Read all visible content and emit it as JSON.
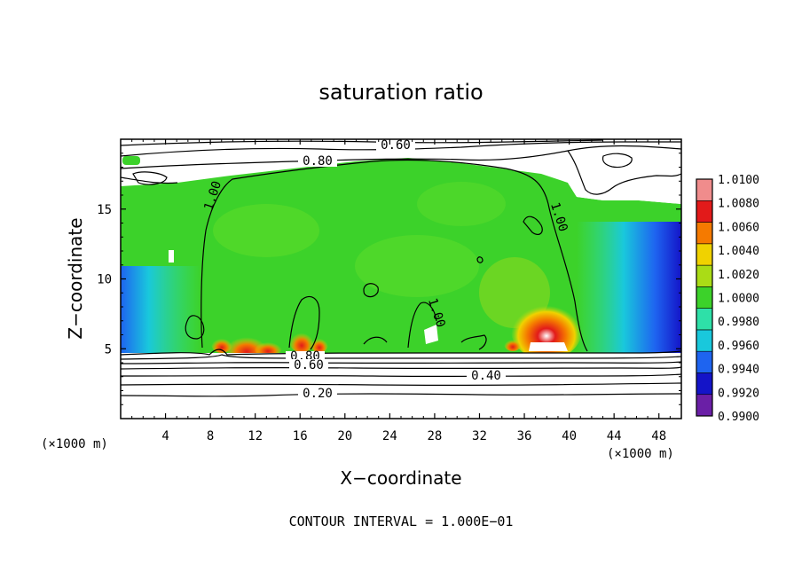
{
  "chart_data": {
    "type": "heatmap",
    "title": "saturation ratio",
    "xlabel": "X−coordinate",
    "ylabel": "Z−coordinate",
    "x_unit": "(×1000 m)",
    "y_unit": "(×1000 m)",
    "xlim": [
      0,
      50
    ],
    "ylim": [
      0,
      20
    ],
    "x_ticks": [
      4,
      8,
      12,
      16,
      20,
      24,
      28,
      32,
      36,
      40,
      44,
      48
    ],
    "y_ticks": [
      5,
      10,
      15
    ],
    "colorbar_levels": [
      "0.9900",
      "0.9920",
      "0.9940",
      "0.9960",
      "0.9980",
      "1.0000",
      "1.0020",
      "1.0040",
      "1.0060",
      "1.0080",
      "1.0100"
    ],
    "colorbar_colors": [
      "#6a1fa6",
      "#1414c8",
      "#1e64f0",
      "#19c8dc",
      "#2ee0a8",
      "#3cd22a",
      "#aadc16",
      "#f0d200",
      "#f57a00",
      "#e21a1a",
      "#f08c8c"
    ],
    "contour_labels": [
      "0.60",
      "0.80",
      "1.00",
      "1.00",
      "1.00",
      "0.80",
      "0.60",
      "0.40",
      "0.20"
    ],
    "contour_interval": "CONTOUR INTERVAL = 1.000E−01"
  }
}
